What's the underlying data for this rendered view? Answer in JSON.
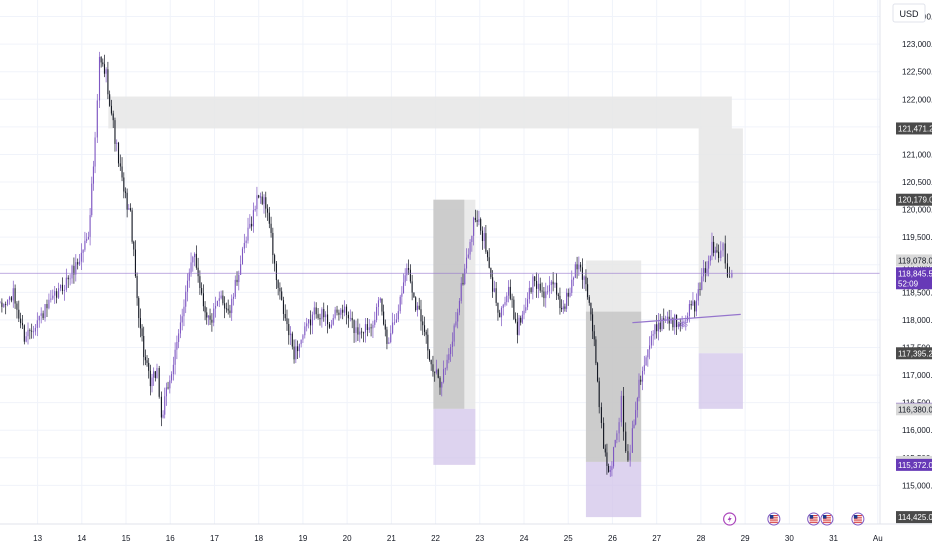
{
  "currency_label": "USD",
  "colors": {
    "up": "#7e57c2",
    "down": "#131722",
    "grid": "#f0f3fa",
    "axis_text": "#131722",
    "price_line": "#9575cd",
    "zone_gray": "#e6e6e6",
    "zone_dark": "#b2b2b2",
    "zone_purple": "#d1c4e9",
    "label_dark_bg": "#4a4a4a",
    "label_light_bg": "#d9d9d9",
    "label_purple_bg": "#673ab7"
  },
  "chart_data": {
    "type": "candlestick",
    "ylim": [
      114300,
      123800
    ],
    "y_ticks": [
      115000,
      115500,
      116000,
      116500,
      117000,
      117500,
      118000,
      118500,
      119000,
      119500,
      120000,
      120500,
      121000,
      121500,
      122000,
      122500,
      123000,
      123500
    ],
    "x_ticks": [
      "13",
      "14",
      "15",
      "16",
      "17",
      "18",
      "19",
      "20",
      "21",
      "22",
      "23",
      "24",
      "25",
      "26",
      "27",
      "28",
      "29",
      "30",
      "31",
      "Au"
    ],
    "x_range_days": [
      12.15,
      32.05
    ],
    "price_labels": [
      {
        "value": 121471.2,
        "text": "121,471.2",
        "style": "dark"
      },
      {
        "value": 120179.0,
        "text": "120,179.0",
        "style": "dark"
      },
      {
        "value": 119078.0,
        "text": "119,078.0",
        "style": "light"
      },
      {
        "value": 118845.5,
        "text": "118,845.5",
        "subtext": "52:09",
        "style": "purple"
      },
      {
        "value": 117395.2,
        "text": "117,395.2",
        "style": "dark"
      },
      {
        "value": 116387.7,
        "text": "116,387.7",
        "style": "purple"
      },
      {
        "value": 116380.0,
        "text": "116,380.0",
        "style": "light"
      },
      {
        "value": 115425.7,
        "text": "115,425.7",
        "style": "light"
      },
      {
        "value": 115372.0,
        "text": "115,372.0",
        "style": "purple"
      },
      {
        "value": 114425.0,
        "text": "114,425.0",
        "style": "dark"
      }
    ],
    "current_price": 118845.5,
    "zones": [
      {
        "kind": "gray",
        "x0": 14.6,
        "x1": 28.7,
        "y0": 121471.2,
        "y1": 122050
      },
      {
        "kind": "gray",
        "x0": 21.95,
        "x1": 22.9,
        "y0": 116387.7,
        "y1": 120179
      },
      {
        "kind": "dark",
        "x0": 21.95,
        "x1": 22.65,
        "y0": 116387.7,
        "y1": 120179
      },
      {
        "kind": "purple",
        "x0": 21.95,
        "x1": 22.9,
        "y0": 115372,
        "y1": 116387.7
      },
      {
        "kind": "gray",
        "x0": 25.4,
        "x1": 26.65,
        "y0": 115425.7,
        "y1": 119078
      },
      {
        "kind": "dark",
        "x0": 25.4,
        "x1": 26.65,
        "y0": 115425.7,
        "y1": 118150
      },
      {
        "kind": "purple",
        "x0": 25.4,
        "x1": 26.65,
        "y0": 114425,
        "y1": 115425.7
      },
      {
        "kind": "gray",
        "x0": 27.95,
        "x1": 28.95,
        "y0": 117395.2,
        "y1": 121471.2
      },
      {
        "kind": "purple",
        "x0": 27.95,
        "x1": 28.95,
        "y0": 116387.7,
        "y1": 117395.2
      }
    ],
    "annotation_line": {
      "x0": 26.45,
      "y0": 117950,
      "x1": 28.9,
      "y1": 118100,
      "label": "$$$"
    },
    "event_icons": [
      {
        "x": 28.65,
        "icon": "lightning-icon"
      },
      {
        "x": 29.65,
        "icon": "us-flag-icon"
      },
      {
        "x": 30.55,
        "icon": "us-flag-icon"
      },
      {
        "x": 30.85,
        "icon": "us-flag-icon"
      },
      {
        "x": 31.55,
        "icon": "us-flag-icon"
      }
    ],
    "keypoints": [
      [
        12.15,
        118200
      ],
      [
        12.45,
        118450
      ],
      [
        12.7,
        117700
      ],
      [
        12.95,
        117950
      ],
      [
        13.3,
        118300
      ],
      [
        13.65,
        118700
      ],
      [
        13.95,
        119100
      ],
      [
        14.15,
        119600
      ],
      [
        14.3,
        121200
      ],
      [
        14.4,
        122700
      ],
      [
        14.55,
        122450
      ],
      [
        14.75,
        121300
      ],
      [
        14.95,
        120300
      ],
      [
        15.1,
        119900
      ],
      [
        15.25,
        118400
      ],
      [
        15.4,
        117400
      ],
      [
        15.55,
        116800
      ],
      [
        15.7,
        117100
      ],
      [
        15.8,
        116200
      ],
      [
        15.95,
        116800
      ],
      [
        16.15,
        117500
      ],
      [
        16.35,
        118550
      ],
      [
        16.55,
        119200
      ],
      [
        16.75,
        118300
      ],
      [
        16.9,
        117950
      ],
      [
        17.15,
        118400
      ],
      [
        17.35,
        118150
      ],
      [
        17.55,
        118900
      ],
      [
        17.8,
        119700
      ],
      [
        18.0,
        120300
      ],
      [
        18.2,
        120000
      ],
      [
        18.4,
        118700
      ],
      [
        18.6,
        118000
      ],
      [
        18.8,
        117400
      ],
      [
        19.0,
        117700
      ],
      [
        19.3,
        118200
      ],
      [
        19.6,
        117950
      ],
      [
        19.9,
        118200
      ],
      [
        20.2,
        117800
      ],
      [
        20.5,
        117900
      ],
      [
        20.75,
        118300
      ],
      [
        20.9,
        117600
      ],
      [
        21.2,
        118350
      ],
      [
        21.35,
        119000
      ],
      [
        21.55,
        118300
      ],
      [
        21.75,
        117900
      ],
      [
        21.9,
        117100
      ],
      [
        22.1,
        116900
      ],
      [
        22.3,
        117300
      ],
      [
        22.5,
        118200
      ],
      [
        22.7,
        119100
      ],
      [
        22.9,
        119900
      ],
      [
        23.1,
        119450
      ],
      [
        23.25,
        118700
      ],
      [
        23.45,
        118150
      ],
      [
        23.65,
        118500
      ],
      [
        23.85,
        117850
      ],
      [
        24.0,
        118200
      ],
      [
        24.2,
        118700
      ],
      [
        24.45,
        118500
      ],
      [
        24.7,
        118600
      ],
      [
        24.85,
        118200
      ],
      [
        25.0,
        118450
      ],
      [
        25.2,
        119000
      ],
      [
        25.4,
        118700
      ],
      [
        25.55,
        117900
      ],
      [
        25.7,
        116500
      ],
      [
        25.8,
        115600
      ],
      [
        25.95,
        115200
      ],
      [
        26.1,
        116000
      ],
      [
        26.2,
        116500
      ],
      [
        26.25,
        116000
      ],
      [
        26.35,
        115400
      ],
      [
        26.45,
        116000
      ],
      [
        26.6,
        116900
      ],
      [
        26.8,
        117450
      ],
      [
        27.0,
        117900
      ],
      [
        27.2,
        118050
      ],
      [
        27.45,
        117950
      ],
      [
        27.7,
        118150
      ],
      [
        27.9,
        118300
      ],
      [
        28.1,
        118950
      ],
      [
        28.25,
        119300
      ],
      [
        28.4,
        119150
      ],
      [
        28.5,
        119400
      ],
      [
        28.6,
        118900
      ],
      [
        28.7,
        118845
      ]
    ]
  }
}
